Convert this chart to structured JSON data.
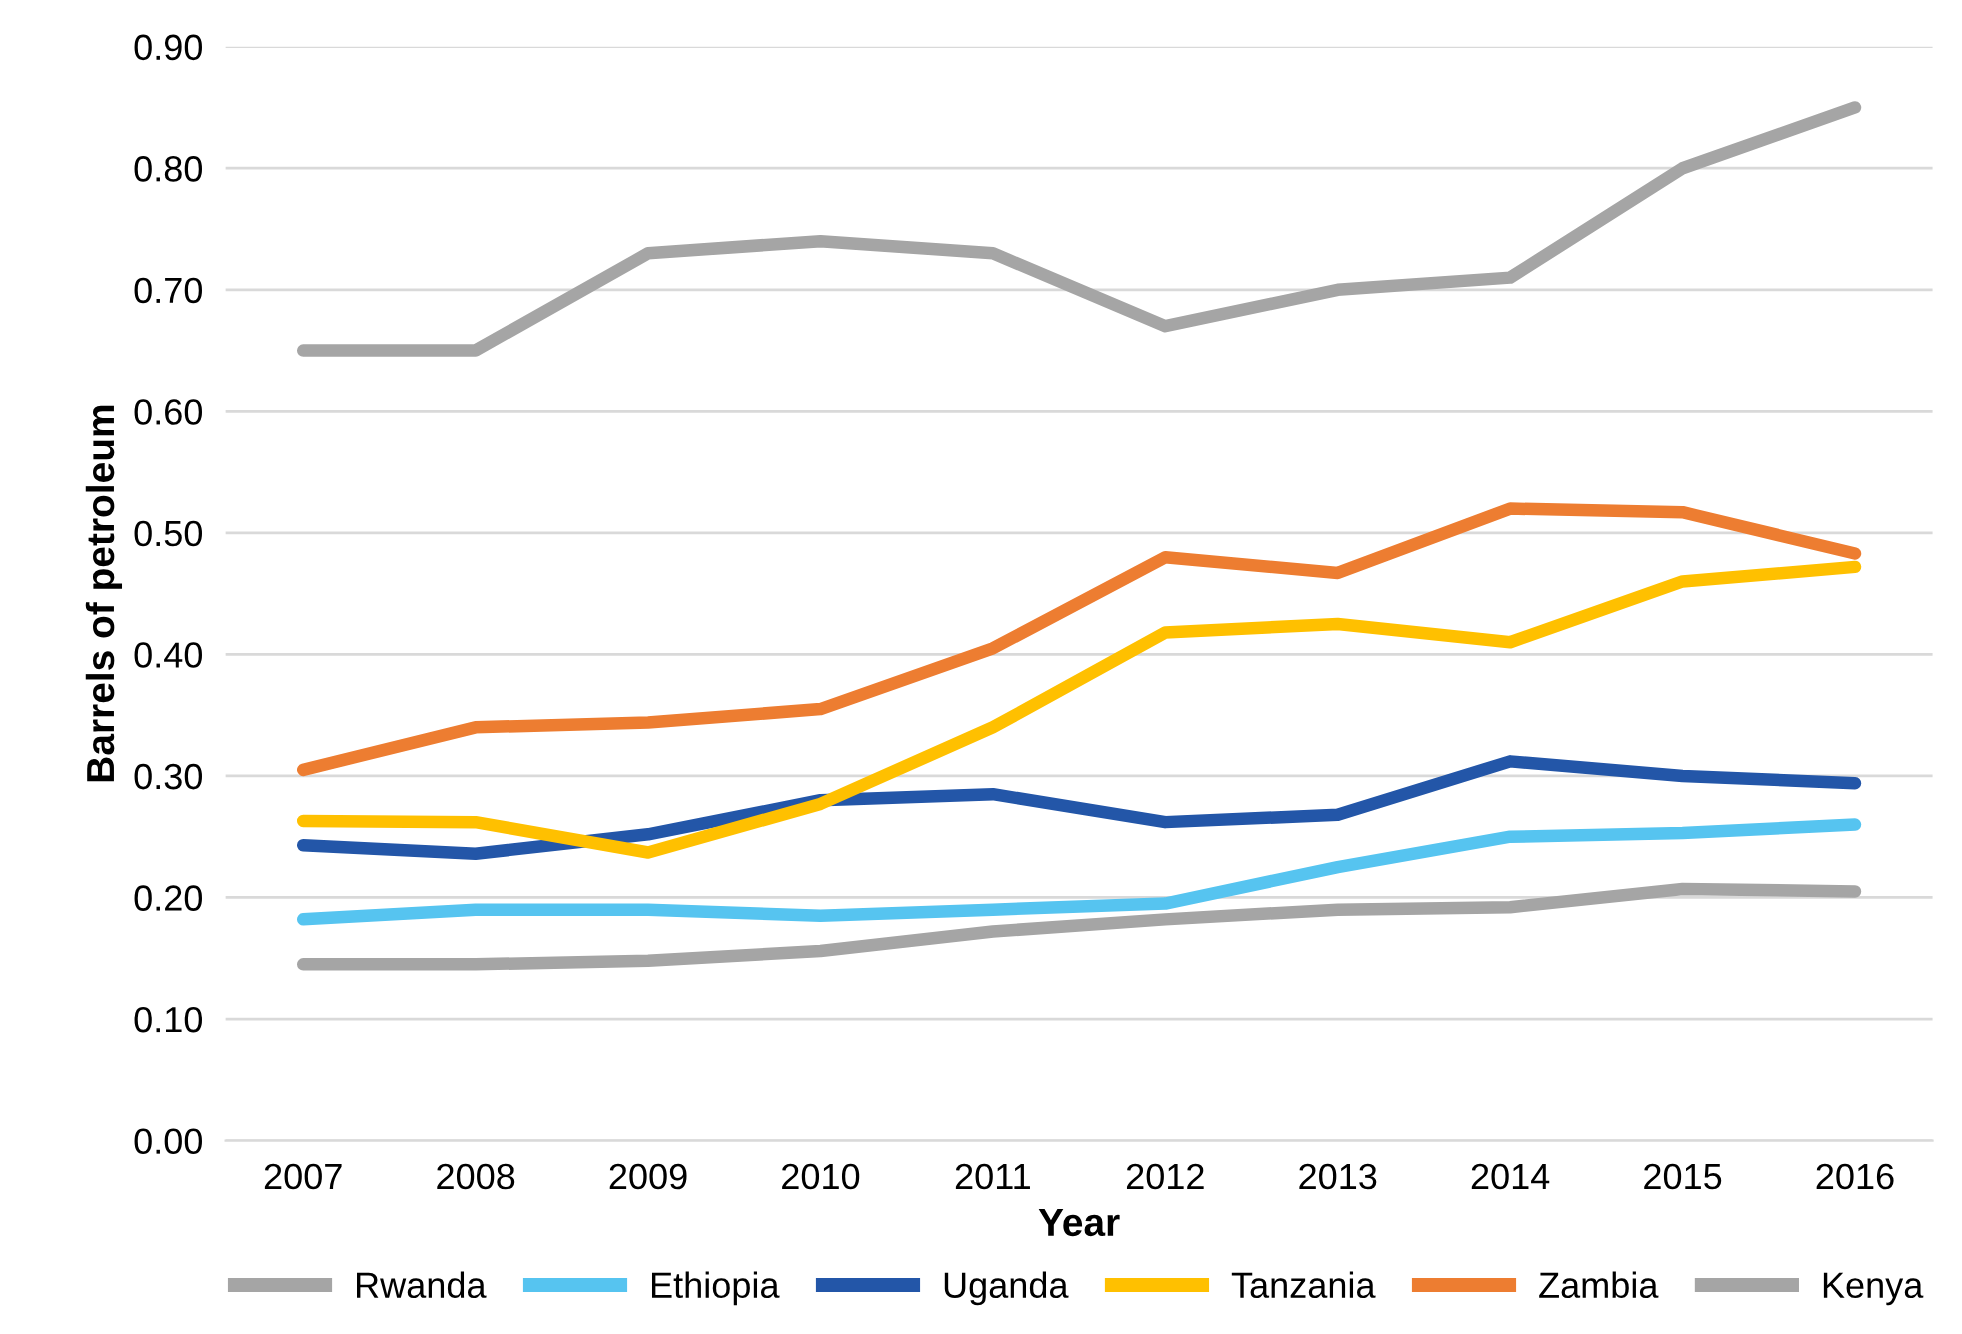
{
  "chart_data": {
    "type": "line",
    "xlabel": "Year",
    "ylabel": "Barrels of petroleum",
    "categories": [
      "2007",
      "2008",
      "2009",
      "2010",
      "2011",
      "2012",
      "2013",
      "2014",
      "2015",
      "2016"
    ],
    "series": [
      {
        "name": "Rwanda",
        "color": "#a5a5a5",
        "values": [
          0.145,
          0.145,
          0.148,
          0.156,
          0.172,
          0.182,
          0.19,
          0.192,
          0.207,
          0.205
        ]
      },
      {
        "name": "Ethiopia",
        "color": "#56c4f0",
        "values": [
          0.182,
          0.19,
          0.19,
          0.185,
          0.19,
          0.195,
          0.225,
          0.25,
          0.253,
          0.26
        ]
      },
      {
        "name": "Uganda",
        "color": "#2356a8",
        "values": [
          0.243,
          0.236,
          0.252,
          0.28,
          0.285,
          0.262,
          0.268,
          0.312,
          0.3,
          0.294
        ]
      },
      {
        "name": "Tanzania",
        "color": "#ffc000",
        "values": [
          0.263,
          0.262,
          0.237,
          0.277,
          0.34,
          0.418,
          0.425,
          0.41,
          0.46,
          0.472
        ]
      },
      {
        "name": "Zambia",
        "color": "#ed7d31",
        "values": [
          0.305,
          0.34,
          0.344,
          0.355,
          0.405,
          0.48,
          0.467,
          0.52,
          0.517,
          0.483
        ]
      },
      {
        "name": "Kenya",
        "color": "#a5a5a5",
        "values": [
          0.65,
          0.65,
          0.73,
          0.74,
          0.73,
          0.67,
          0.7,
          0.71,
          0.8,
          0.85
        ]
      }
    ],
    "ylim": [
      0,
      0.9
    ],
    "yticks": [
      {
        "value": 0,
        "label": "0.00"
      },
      {
        "value": 0.1,
        "label": "0.10"
      },
      {
        "value": 0.2,
        "label": "0.20"
      },
      {
        "value": 0.3,
        "label": "0.30"
      },
      {
        "value": 0.4,
        "label": "0.40"
      },
      {
        "value": 0.5,
        "label": "0.50"
      },
      {
        "value": 0.6,
        "label": "0.60"
      },
      {
        "value": 0.7,
        "label": "0.70"
      },
      {
        "value": 0.8,
        "label": "0.80"
      },
      {
        "value": 0.9,
        "label": "0.90"
      }
    ],
    "grid": "y",
    "legend": "bottom",
    "marker": "none",
    "line_style": "solid"
  }
}
